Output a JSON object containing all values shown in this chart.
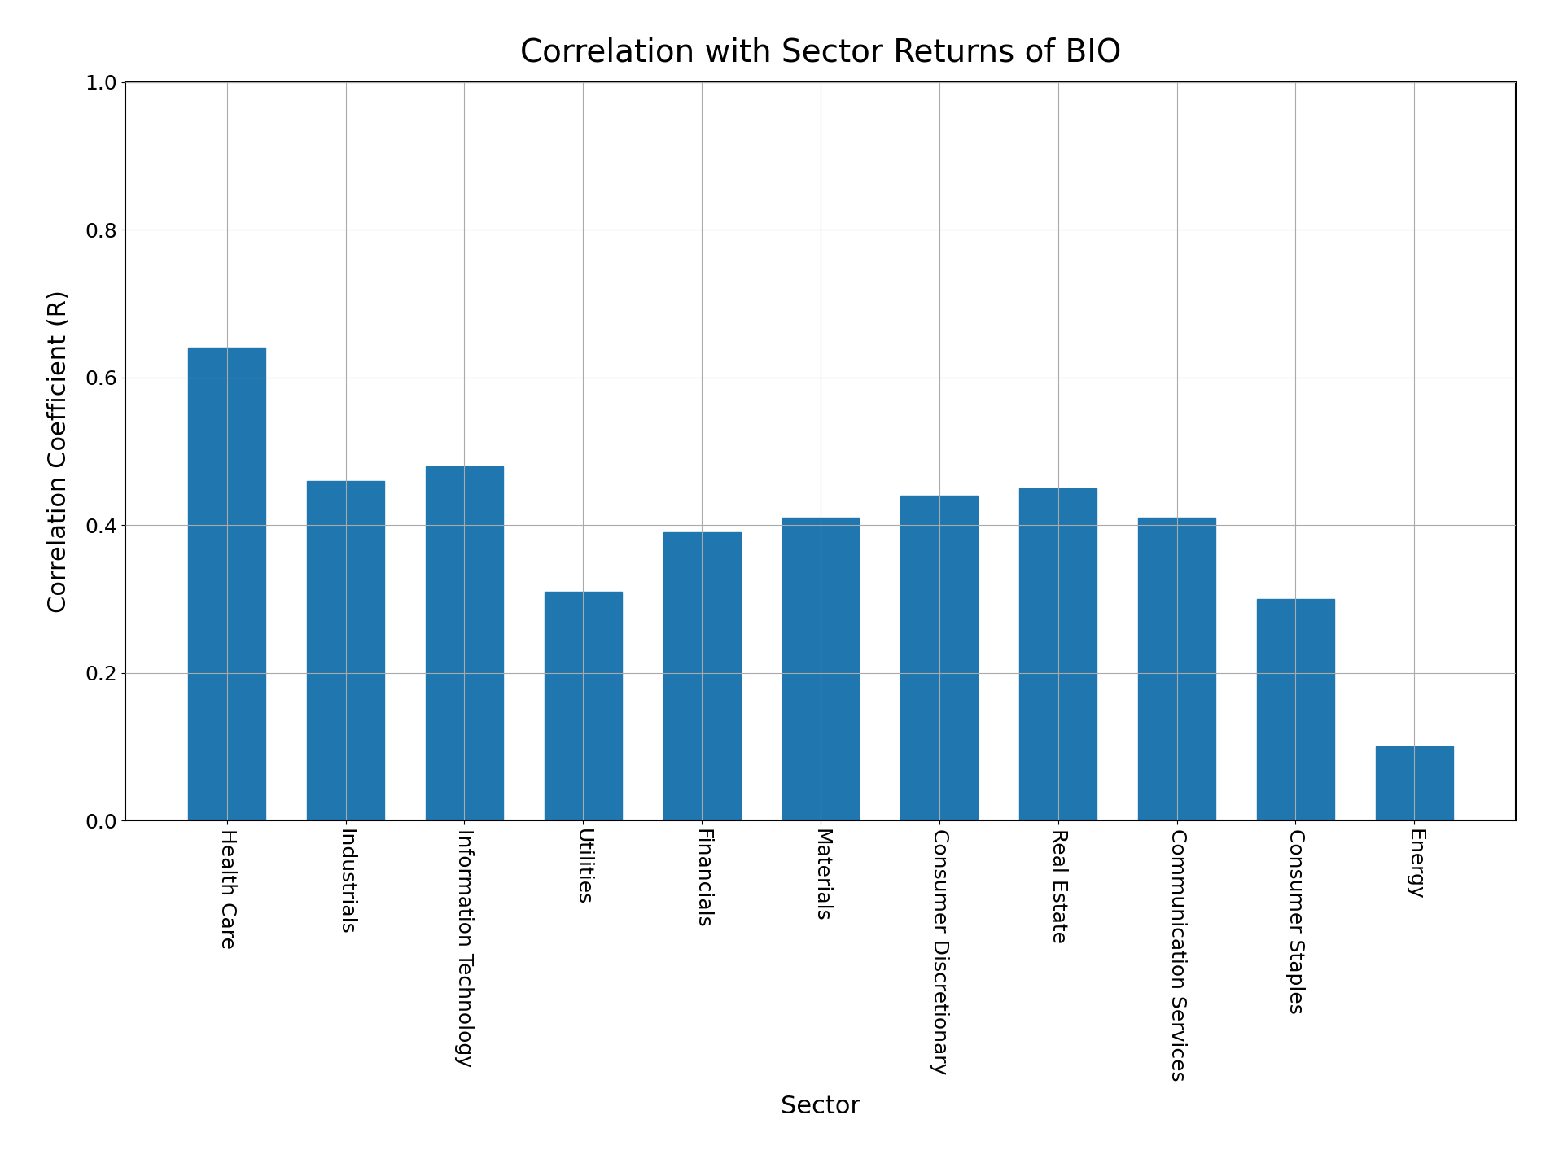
{
  "title": "Correlation with Sector Returns of BIO",
  "xlabel": "Sector",
  "ylabel": "Correlation Coefficient (R)",
  "categories": [
    "Health Care",
    "Industrials",
    "Information Technology",
    "Utilities",
    "Financials",
    "Materials",
    "Consumer Discretionary",
    "Real Estate",
    "Communication Services",
    "Consumer Staples",
    "Energy"
  ],
  "values": [
    0.64,
    0.46,
    0.48,
    0.31,
    0.39,
    0.41,
    0.44,
    0.45,
    0.41,
    0.3,
    0.1
  ],
  "bar_color": "#2076ae",
  "ylim": [
    0.0,
    1.0
  ],
  "yticks": [
    0.0,
    0.2,
    0.4,
    0.6,
    0.8,
    1.0
  ],
  "title_fontsize": 28,
  "label_fontsize": 22,
  "tick_fontsize": 18,
  "background_color": "#ffffff",
  "grid_color": "#aaaaaa",
  "bar_width": 0.65
}
